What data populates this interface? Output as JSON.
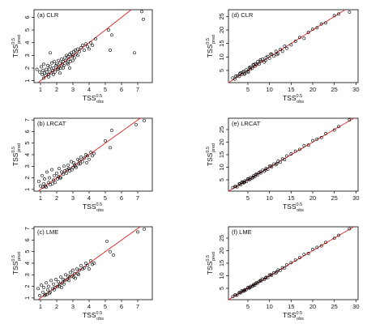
{
  "chart_data": [
    {
      "type": "scatter",
      "title": "(a) CLR",
      "xlabel": "TSS",
      "xlabel_sup": "0.5",
      "xlabel_sub": "obs",
      "ylabel": "TSS",
      "ylabel_sup": "0.5",
      "ylabel_sub": "pred",
      "xlim": [
        0.6,
        7.9
      ],
      "ylim": [
        0.85,
        6.6
      ],
      "xticks": [
        1,
        2,
        3,
        4,
        5,
        6,
        7
      ],
      "yticks": [
        1,
        2,
        3,
        4,
        5,
        6
      ],
      "reference_line": {
        "slope": 1,
        "intercept": 0,
        "color": "#e32222"
      },
      "point_color": "#000000",
      "series": [
        {
          "x": [
            0.78,
            0.95,
            1.05,
            1.1,
            1.15,
            1.2,
            1.25,
            1.3,
            1.35,
            1.4,
            1.45,
            1.5,
            1.55,
            1.6,
            1.65,
            1.7,
            1.75,
            1.8,
            1.85,
            1.9,
            1.95,
            2.0,
            2.05,
            2.1,
            2.15,
            2.2,
            2.25,
            2.3,
            2.35,
            2.4,
            2.45,
            2.5,
            2.55,
            2.6,
            2.65,
            2.7,
            2.75,
            2.8,
            2.85,
            2.9,
            2.95,
            3.0,
            3.05,
            3.1,
            3.15,
            3.2,
            3.3,
            3.4,
            3.5,
            3.6,
            3.7,
            3.8,
            3.9,
            4.0,
            4.1,
            4.2,
            4.4,
            5.2,
            5.3,
            5.4,
            6.8,
            7.25,
            7.35,
            1.2,
            1.5,
            1.8,
            2.1,
            2.4,
            2.7,
            3.0,
            3.3,
            1.6,
            2.2,
            2.8
          ],
          "y": [
            1.9,
            1.7,
            2.1,
            1.5,
            1.8,
            2.3,
            1.6,
            1.4,
            1.9,
            1.7,
            2.2,
            1.5,
            1.9,
            2.1,
            1.6,
            2.4,
            1.8,
            2.0,
            2.5,
            1.7,
            2.2,
            2.3,
            1.9,
            2.6,
            2.1,
            2.4,
            2.0,
            2.7,
            2.3,
            2.5,
            2.2,
            2.8,
            2.6,
            3.0,
            2.4,
            2.9,
            2.7,
            3.1,
            2.5,
            3.2,
            2.9,
            3.0,
            3.3,
            2.8,
            3.4,
            3.1,
            3.5,
            3.3,
            3.6,
            3.8,
            3.4,
            3.9,
            3.7,
            3.5,
            4.0,
            3.8,
            4.3,
            5.0,
            3.4,
            4.6,
            3.2,
            6.45,
            5.85,
            1.2,
            1.3,
            1.5,
            1.9,
            2.0,
            2.3,
            2.6,
            3.0,
            3.2,
            1.6,
            2.0
          ]
        }
      ]
    },
    {
      "type": "scatter",
      "title": "(d) CLR",
      "xlabel": "TSS",
      "xlabel_sup": "0.5",
      "xlabel_sub": "obs",
      "ylabel": "TSS",
      "ylabel_sup": "0.5",
      "ylabel_sub": "pred",
      "xlim": [
        0.5,
        30.5
      ],
      "ylim": [
        0.5,
        27.5
      ],
      "xticks": [
        5,
        10,
        15,
        20,
        25,
        30
      ],
      "yticks": [
        5,
        10,
        15,
        20,
        25
      ],
      "reference_line": {
        "slope": 1,
        "intercept": 0,
        "color": "#e32222"
      },
      "point_color": "#000000",
      "series": [
        {
          "x": [
            1.5,
            2,
            2.5,
            3,
            3.3,
            3.6,
            4,
            4.3,
            4.6,
            5,
            5.3,
            5.6,
            6,
            6.3,
            6.6,
            7,
            7.3,
            7.6,
            8,
            8.4,
            8.8,
            9.2,
            9.6,
            10,
            10.5,
            11,
            11.5,
            12,
            12.5,
            13,
            13.5,
            14,
            15,
            16,
            17,
            18,
            19,
            20,
            21,
            22,
            23,
            25,
            26,
            28.5,
            2.2,
            3.1,
            4.2,
            5.5,
            6.8,
            7.9,
            9.1,
            10.3,
            11.7,
            3.8,
            5.1,
            6.2
          ],
          "y": [
            2.2,
            1.8,
            3,
            2.8,
            4.1,
            3.5,
            4.6,
            3.9,
            5.2,
            4.7,
            6,
            5.5,
            5.8,
            7.2,
            6.5,
            7.1,
            8.3,
            7.4,
            8.4,
            9.2,
            8.1,
            9.8,
            10.2,
            9.5,
            11,
            10.3,
            12.1,
            11.2,
            12.8,
            12.1,
            14,
            13.2,
            14.5,
            15.8,
            17.2,
            16.9,
            19.1,
            20.3,
            20.8,
            22.2,
            22.6,
            25.3,
            25.9,
            26.6,
            2.9,
            3.8,
            3.6,
            6.2,
            7.5,
            8.9,
            8.7,
            11.1,
            10.9,
            4.3,
            4.3,
            7.0
          ]
        }
      ]
    },
    {
      "type": "scatter",
      "title": "(b) LRCAT",
      "xlabel": "TSS",
      "xlabel_sup": "0.5",
      "xlabel_sub": "obs",
      "ylabel": "TSS",
      "ylabel_sup": "0.5",
      "ylabel_sub": "pred",
      "xlim": [
        0.6,
        7.9
      ],
      "ylim": [
        0.85,
        7.15
      ],
      "xticks": [
        1,
        2,
        3,
        4,
        5,
        6,
        7
      ],
      "yticks": [
        1,
        2,
        3,
        4,
        5,
        6,
        7
      ],
      "reference_line": {
        "slope": 1,
        "intercept": 0,
        "color": "#e32222"
      },
      "point_color": "#000000",
      "series": [
        {
          "x": [
            0.9,
            1.0,
            1.1,
            1.2,
            1.25,
            1.3,
            1.4,
            1.5,
            1.55,
            1.6,
            1.7,
            1.8,
            1.85,
            1.9,
            2.0,
            2.1,
            2.15,
            2.2,
            2.3,
            2.4,
            2.45,
            2.5,
            2.6,
            2.7,
            2.75,
            2.8,
            2.9,
            3.0,
            3.05,
            3.1,
            3.2,
            3.3,
            3.35,
            3.4,
            3.5,
            3.6,
            3.7,
            3.8,
            3.9,
            4.0,
            4.1,
            4.2,
            4.3,
            5.0,
            5.3,
            5.4,
            6.9,
            7.4,
            1.35,
            1.75,
            2.25,
            2.65,
            3.15,
            3.45,
            3.85,
            1.15,
            2.05,
            2.95
          ],
          "y": [
            1.7,
            1.3,
            2.2,
            1.5,
            1.9,
            1.3,
            2.5,
            1.6,
            2.0,
            1.4,
            2.7,
            1.8,
            2.2,
            1.6,
            2.4,
            2.1,
            2.8,
            2.0,
            2.5,
            2.3,
            3.0,
            2.6,
            2.4,
            3.1,
            2.8,
            2.6,
            3.4,
            2.9,
            3.3,
            3.1,
            2.9,
            3.6,
            3.2,
            3.5,
            3.8,
            3.4,
            3.7,
            4.0,
            3.9,
            3.6,
            4.2,
            3.9,
            4.1,
            5.2,
            4.6,
            6.1,
            6.6,
            6.95,
            1.2,
            1.5,
            2.0,
            2.7,
            3.0,
            3.2,
            3.3,
            1.2,
            1.9,
            2.7
          ]
        }
      ]
    },
    {
      "type": "scatter",
      "title": "(e) LRCAT",
      "xlabel": "TSS",
      "xlabel_sup": "0.5",
      "xlabel_sub": "obs",
      "ylabel": "TSS",
      "ylabel_sup": "0.5",
      "ylabel_sub": "pred",
      "xlim": [
        0.5,
        30.5
      ],
      "ylim": [
        0.5,
        29.5
      ],
      "xticks": [
        5,
        10,
        15,
        20,
        25,
        30
      ],
      "yticks": [
        5,
        10,
        15,
        20,
        25
      ],
      "reference_line": {
        "slope": 1,
        "intercept": 0,
        "color": "#e32222"
      },
      "point_color": "#000000",
      "series": [
        {
          "x": [
            1.5,
            2,
            2.5,
            3,
            3.3,
            3.6,
            4,
            4.3,
            4.6,
            5,
            5.3,
            5.6,
            6,
            6.3,
            6.6,
            7,
            7.3,
            7.6,
            8,
            8.4,
            8.8,
            9.2,
            9.6,
            10,
            10.5,
            11,
            11.5,
            12,
            12.5,
            13,
            13.5,
            14,
            15,
            16,
            17,
            18,
            19,
            20,
            21,
            22,
            23,
            25,
            26,
            28.5,
            2.2,
            3.1,
            4.2,
            5.5,
            6.8,
            7.9,
            9.1,
            10.3,
            11.7,
            3.8,
            5.1,
            6.2
          ],
          "y": [
            1.9,
            2.3,
            2.2,
            3.4,
            3.0,
            4.1,
            3.8,
            4.6,
            4.3,
            5.4,
            5.0,
            5.9,
            5.7,
            6.6,
            6.2,
            7.3,
            7.0,
            7.9,
            7.7,
            8.8,
            8.4,
            9.5,
            9.2,
            10.4,
            10.1,
            11.3,
            11.0,
            12.4,
            12.0,
            13.3,
            13.0,
            14.5,
            15.3,
            16.4,
            17.1,
            18.6,
            18.8,
            20.6,
            21.2,
            21.8,
            23.4,
            24.8,
            26.2,
            28.8,
            2.4,
            3.4,
            4.0,
            5.2,
            7.0,
            8.2,
            9.0,
            10.5,
            11.5,
            4.0,
            5.4,
            6.0
          ]
        }
      ]
    },
    {
      "type": "scatter",
      "title": "(c) LME",
      "xlabel": "TSS",
      "xlabel_sup": "0.5",
      "xlabel_sub": "obs",
      "ylabel": "TSS",
      "ylabel_sup": "0.5",
      "ylabel_sub": "pred",
      "xlim": [
        0.6,
        7.9
      ],
      "ylim": [
        0.85,
        7.15
      ],
      "xticks": [
        1,
        2,
        3,
        4,
        5,
        6,
        7
      ],
      "yticks": [
        1,
        2,
        3,
        4,
        5,
        6,
        7
      ],
      "reference_line": {
        "slope": 1,
        "intercept": 0,
        "color": "#e32222"
      },
      "point_color": "#000000",
      "series": [
        {
          "x": [
            0.85,
            0.95,
            1.05,
            1.15,
            1.2,
            1.3,
            1.35,
            1.45,
            1.5,
            1.6,
            1.65,
            1.75,
            1.8,
            1.9,
            1.95,
            2.05,
            2.1,
            2.2,
            2.25,
            2.35,
            2.4,
            2.5,
            2.55,
            2.65,
            2.7,
            2.8,
            2.85,
            2.95,
            3.0,
            3.1,
            3.15,
            3.25,
            3.3,
            3.4,
            3.5,
            3.6,
            3.7,
            3.8,
            3.9,
            4.0,
            4.1,
            4.2,
            4.3,
            5.1,
            5.3,
            5.5,
            7.0,
            7.4,
            1.25,
            1.55,
            1.85,
            2.15,
            2.45,
            2.75,
            3.05,
            3.35,
            1.4,
            2.3
          ],
          "y": [
            1.8,
            1.2,
            2.1,
            1.5,
            1.9,
            1.3,
            2.3,
            1.7,
            2.0,
            1.5,
            2.5,
            1.8,
            2.2,
            1.9,
            2.6,
            2.0,
            2.4,
            2.2,
            2.8,
            2.3,
            2.6,
            2.5,
            3.0,
            2.6,
            2.9,
            2.8,
            3.2,
            2.9,
            3.4,
            3.1,
            2.7,
            3.5,
            3.1,
            3.4,
            3.8,
            3.5,
            3.6,
            4.0,
            3.8,
            3.5,
            4.2,
            3.9,
            4.0,
            5.9,
            5.0,
            4.7,
            6.7,
            6.95,
            1.2,
            1.4,
            1.7,
            2.0,
            2.2,
            2.5,
            2.8,
            3.0,
            1.3,
            1.9
          ]
        }
      ]
    },
    {
      "type": "scatter",
      "title": "(f) LME",
      "xlabel": "TSS",
      "xlabel_sup": "0.5",
      "xlabel_sub": "obs",
      "ylabel": "TSS",
      "ylabel_sup": "0.5",
      "ylabel_sub": "pred",
      "xlim": [
        0.5,
        30.5
      ],
      "ylim": [
        0.5,
        29.5
      ],
      "xticks": [
        5,
        10,
        15,
        20,
        25,
        30
      ],
      "yticks": [
        5,
        10,
        15,
        20,
        25
      ],
      "reference_line": {
        "slope": 1,
        "intercept": 0,
        "color": "#e32222"
      },
      "point_color": "#000000",
      "series": [
        {
          "x": [
            1.5,
            2,
            2.5,
            3,
            3.3,
            3.6,
            4,
            4.3,
            4.6,
            5,
            5.3,
            5.6,
            6,
            6.3,
            6.6,
            7,
            7.3,
            7.6,
            8,
            8.4,
            8.8,
            9.2,
            9.6,
            10,
            10.5,
            11,
            11.5,
            12,
            12.5,
            13,
            13.5,
            14,
            15,
            16,
            17,
            18,
            19,
            20,
            21,
            22,
            23,
            25,
            26,
            28.5,
            2.2,
            3.1,
            4.2,
            5.5,
            6.8,
            7.9,
            9.1,
            10.3,
            11.7,
            3.8,
            5.1,
            6.2
          ],
          "y": [
            1.7,
            2.4,
            2.3,
            3.3,
            3.2,
            4.0,
            3.9,
            4.5,
            4.4,
            5.3,
            5.1,
            5.8,
            5.8,
            6.5,
            6.3,
            7.2,
            7.1,
            7.8,
            7.9,
            8.7,
            8.5,
            9.4,
            9.3,
            10.3,
            10.2,
            11.2,
            11.1,
            12.3,
            12.1,
            13.2,
            13.1,
            14.4,
            15.2,
            16.3,
            17.2,
            18.5,
            18.9,
            20.5,
            21.3,
            21.9,
            23.3,
            24.9,
            26.1,
            28.7,
            2.3,
            3.3,
            4.1,
            5.3,
            6.9,
            8.1,
            9.1,
            10.4,
            11.6,
            3.9,
            5.3,
            6.1
          ]
        }
      ]
    }
  ]
}
